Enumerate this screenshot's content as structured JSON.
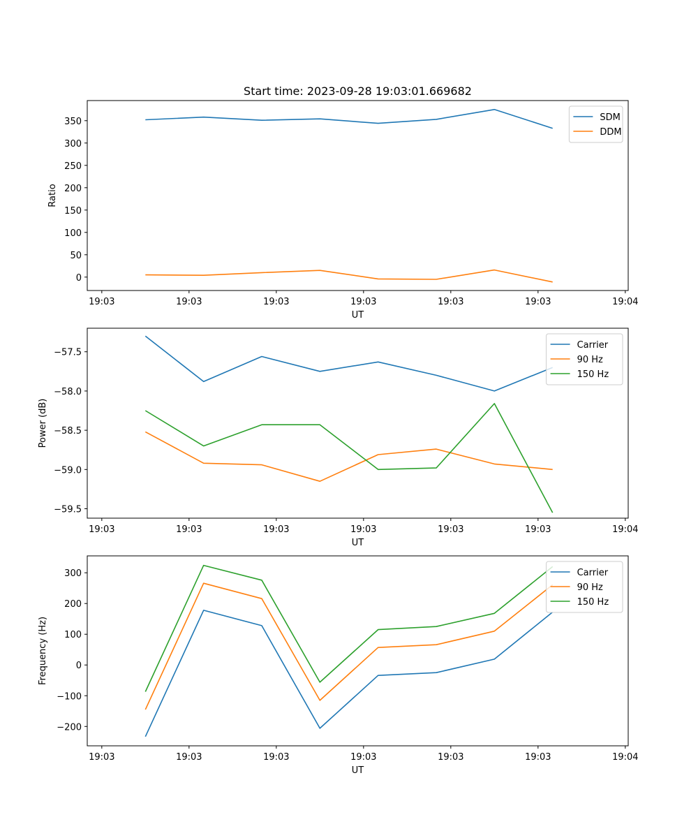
{
  "chart_data": [
    {
      "type": "line",
      "title": "Start time: 2023-09-28 19:03:01.669682",
      "xlabel": "UT",
      "ylabel": "Ratio",
      "xlim": [
        -0.5,
        8.8
      ],
      "ylim": [
        -30,
        395
      ],
      "xticks": [
        {
          "v": -0.25,
          "label": "19:03"
        },
        {
          "v": 1.25,
          "label": "19:03"
        },
        {
          "v": 2.75,
          "label": "19:03"
        },
        {
          "v": 4.25,
          "label": "19:03"
        },
        {
          "v": 5.75,
          "label": "19:03"
        },
        {
          "v": 7.25,
          "label": "19:03"
        },
        {
          "v": 8.75,
          "label": "19:04"
        }
      ],
      "yticks": [
        0,
        50,
        100,
        150,
        200,
        250,
        300,
        350
      ],
      "x": [
        0.5,
        1.5,
        2.5,
        3.5,
        4.5,
        5.5,
        6.5,
        7.5
      ],
      "series": [
        {
          "name": "SDM",
          "color": "#1f77b4",
          "values": [
            352,
            358,
            351,
            354,
            344,
            353,
            375,
            333
          ]
        },
        {
          "name": "DDM",
          "color": "#ff7f0e",
          "values": [
            5,
            4,
            10,
            15,
            -4,
            -5,
            16,
            -11
          ]
        }
      ],
      "legend": "top-right",
      "grid": false
    },
    {
      "type": "line",
      "title": "",
      "xlabel": "UT",
      "ylabel": "Power (dB)",
      "xlim": [
        -0.5,
        8.8
      ],
      "ylim": [
        -59.62,
        -57.2
      ],
      "xticks": [
        {
          "v": -0.25,
          "label": "19:03"
        },
        {
          "v": 1.25,
          "label": "19:03"
        },
        {
          "v": 2.75,
          "label": "19:03"
        },
        {
          "v": 4.25,
          "label": "19:03"
        },
        {
          "v": 5.75,
          "label": "19:03"
        },
        {
          "v": 7.25,
          "label": "19:03"
        },
        {
          "v": 8.75,
          "label": "19:04"
        }
      ],
      "yticks": [
        -59.5,
        -59.0,
        -58.5,
        -58.0,
        -57.5
      ],
      "x": [
        0.5,
        1.5,
        2.5,
        3.5,
        4.5,
        5.5,
        6.5,
        7.5
      ],
      "series": [
        {
          "name": "Carrier",
          "color": "#1f77b4",
          "values": [
            -57.3,
            -57.88,
            -57.56,
            -57.75,
            -57.63,
            -57.8,
            -58.0,
            -57.7
          ]
        },
        {
          "name": "90 Hz",
          "color": "#ff7f0e",
          "values": [
            -58.52,
            -58.92,
            -58.94,
            -59.15,
            -58.81,
            -58.74,
            -58.93,
            -59.0
          ]
        },
        {
          "name": "150 Hz",
          "color": "#2ca02c",
          "values": [
            -58.25,
            -58.7,
            -58.43,
            -58.43,
            -59.0,
            -58.98,
            -58.16,
            -59.55
          ]
        }
      ],
      "legend": "top-right",
      "grid": false
    },
    {
      "type": "line",
      "title": "",
      "xlabel": "UT",
      "ylabel": "Frequency (Hz)",
      "xlim": [
        -0.5,
        8.8
      ],
      "ylim": [
        -263,
        355
      ],
      "xticks": [
        {
          "v": -0.25,
          "label": "19:03"
        },
        {
          "v": 1.25,
          "label": "19:03"
        },
        {
          "v": 2.75,
          "label": "19:03"
        },
        {
          "v": 4.25,
          "label": "19:03"
        },
        {
          "v": 5.75,
          "label": "19:03"
        },
        {
          "v": 7.25,
          "label": "19:03"
        },
        {
          "v": 8.75,
          "label": "19:04"
        }
      ],
      "yticks": [
        -200,
        -100,
        0,
        100,
        200,
        300
      ],
      "x": [
        0.5,
        1.5,
        2.5,
        3.5,
        4.5,
        5.5,
        6.5,
        7.5
      ],
      "series": [
        {
          "name": "Carrier",
          "color": "#1f77b4",
          "values": [
            -233,
            178,
            128,
            -206,
            -34,
            -25,
            19,
            172
          ]
        },
        {
          "name": "90 Hz",
          "color": "#ff7f0e",
          "values": [
            -145,
            266,
            216,
            -115,
            57,
            66,
            110,
            261
          ]
        },
        {
          "name": "150 Hz",
          "color": "#2ca02c",
          "values": [
            -87,
            324,
            276,
            -56,
            115,
            125,
            168,
            320
          ]
        }
      ],
      "legend": "top-right",
      "grid": false
    }
  ]
}
